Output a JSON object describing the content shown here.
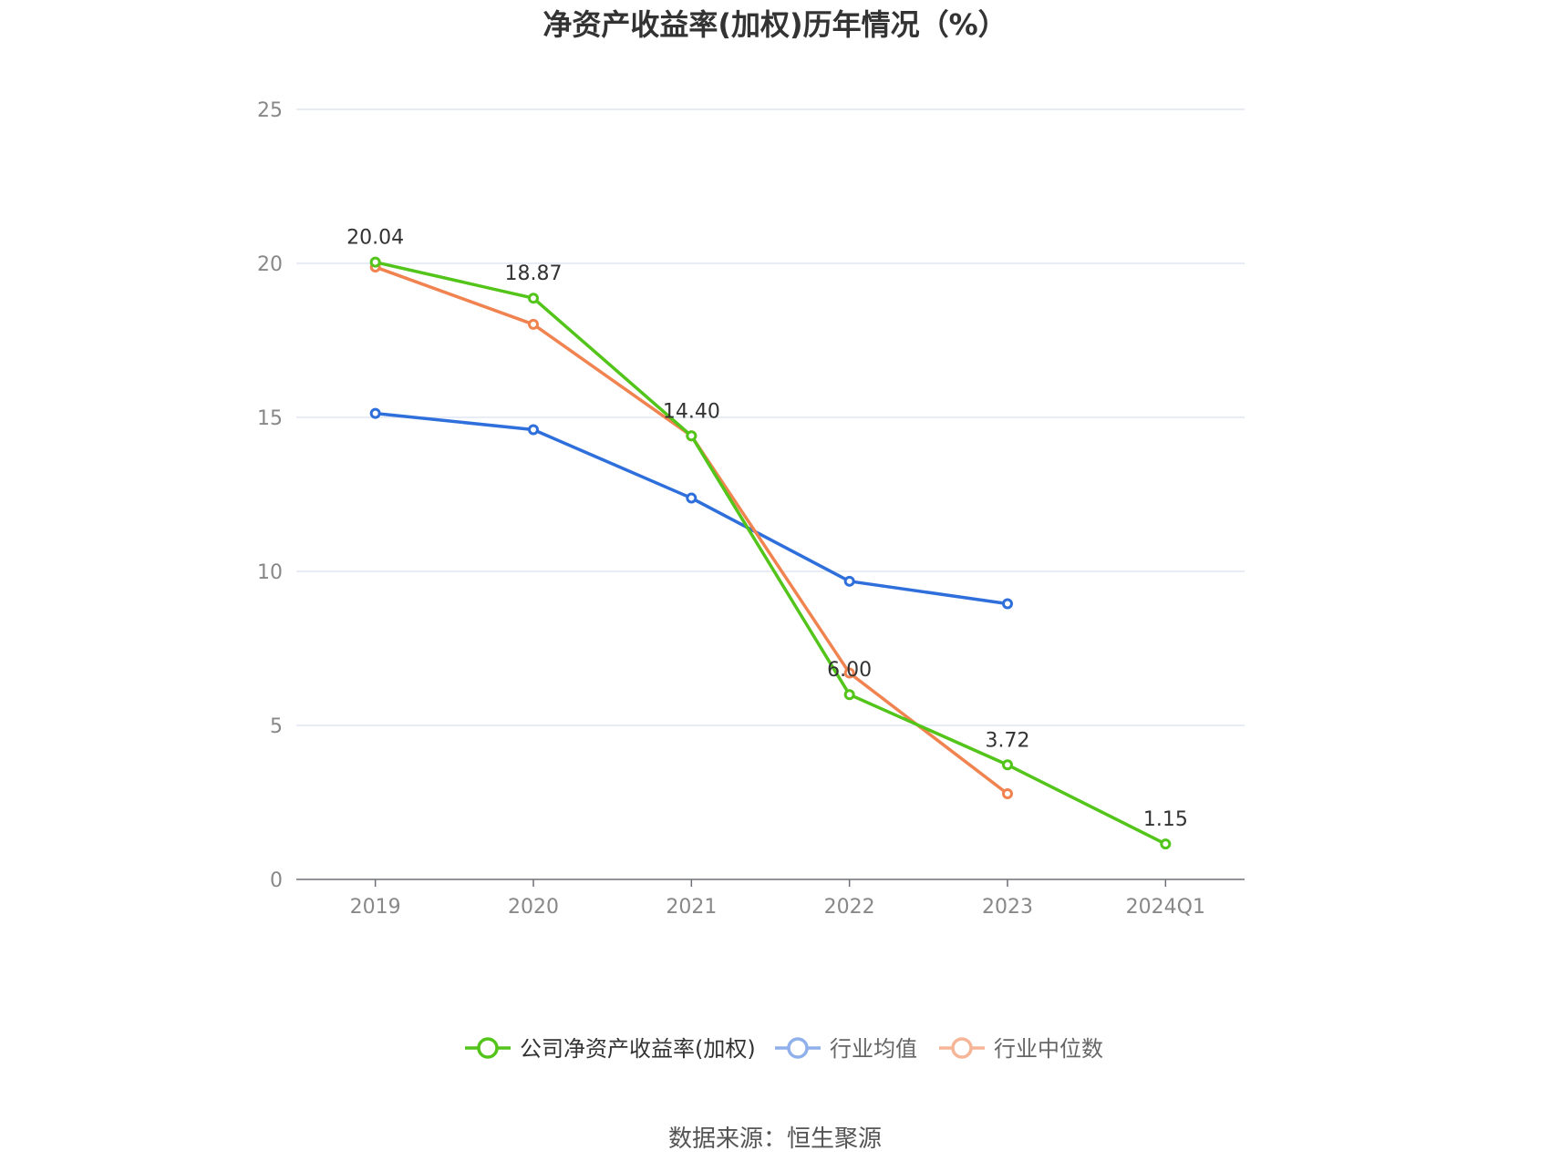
{
  "chart_data": {
    "type": "line",
    "title": "净资产收益率(加权)历年情况（%）",
    "categories": [
      "2019",
      "2020",
      "2021",
      "2022",
      "2023",
      "2024Q1"
    ],
    "ylim": [
      0,
      25
    ],
    "yticks": [
      0,
      5,
      10,
      15,
      20,
      25
    ],
    "grid": true,
    "legend_position": "bottom",
    "series": [
      {
        "name": "公司净资产收益率(加权)",
        "color": "#52c41a",
        "values": [
          20.04,
          18.87,
          14.4,
          6.0,
          3.72,
          1.15
        ],
        "labels": [
          "20.04",
          "18.87",
          "14.40",
          "6.00",
          "3.72",
          "1.15"
        ]
      },
      {
        "name": "行业均值",
        "color": "#2f6fdb",
        "legend_color": "#8fb0ea",
        "values": [
          15.13,
          14.6,
          12.38,
          9.68,
          8.95,
          null
        ]
      },
      {
        "name": "行业中位数",
        "color": "#f0834f",
        "legend_color": "#f6b596",
        "values": [
          19.88,
          18.02,
          14.4,
          6.7,
          2.78,
          null
        ]
      }
    ]
  },
  "source": "数据来源：恒生聚源"
}
